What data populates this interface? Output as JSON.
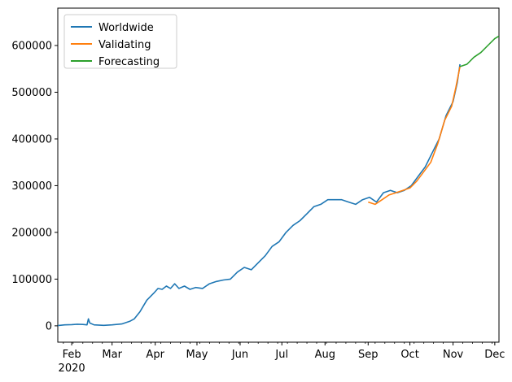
{
  "chart_data": {
    "type": "line",
    "title": "",
    "xlabel": "",
    "ylabel": "",
    "x_start": "2020-01-22",
    "x_end": "2020-12-04",
    "xlim": [
      "2020-01-22",
      "2020-12-04"
    ],
    "ylim": [
      -35000,
      680000
    ],
    "yticks": [
      0,
      100000,
      200000,
      300000,
      400000,
      500000,
      600000
    ],
    "ytick_labels": [
      "0",
      "100000",
      "200000",
      "300000",
      "400000",
      "500000",
      "600000"
    ],
    "xticks": [
      {
        "date": "2020-02-01",
        "label": "Feb"
      },
      {
        "date": "2020-03-01",
        "label": "Mar"
      },
      {
        "date": "2020-04-01",
        "label": "Apr"
      },
      {
        "date": "2020-05-01",
        "label": "May"
      },
      {
        "date": "2020-06-01",
        "label": "Jun"
      },
      {
        "date": "2020-07-01",
        "label": "Jul"
      },
      {
        "date": "2020-08-01",
        "label": "Aug"
      },
      {
        "date": "2020-09-01",
        "label": "Sep"
      },
      {
        "date": "2020-10-01",
        "label": "Oct"
      },
      {
        "date": "2020-11-01",
        "label": "Nov"
      },
      {
        "date": "2020-12-01",
        "label": "Dec"
      }
    ],
    "year_label": "2020",
    "grid": false,
    "legend_position": "top-left",
    "series": [
      {
        "name": "Worldwide",
        "color": "#1f77b4",
        "points": [
          [
            "2020-01-22",
            500
          ],
          [
            "2020-01-27",
            2000
          ],
          [
            "2020-02-01",
            2500
          ],
          [
            "2020-02-05",
            3500
          ],
          [
            "2020-02-09",
            3000
          ],
          [
            "2020-02-12",
            2000
          ],
          [
            "2020-02-13",
            15000
          ],
          [
            "2020-02-14",
            6000
          ],
          [
            "2020-02-17",
            2000
          ],
          [
            "2020-02-24",
            1000
          ],
          [
            "2020-03-01",
            2000
          ],
          [
            "2020-03-08",
            4000
          ],
          [
            "2020-03-14",
            10000
          ],
          [
            "2020-03-17",
            15000
          ],
          [
            "2020-03-21",
            30000
          ],
          [
            "2020-03-26",
            55000
          ],
          [
            "2020-03-31",
            70000
          ],
          [
            "2020-04-03",
            80000
          ],
          [
            "2020-04-06",
            78000
          ],
          [
            "2020-04-09",
            85000
          ],
          [
            "2020-04-12",
            80000
          ],
          [
            "2020-04-15",
            90000
          ],
          [
            "2020-04-18",
            80000
          ],
          [
            "2020-04-22",
            85000
          ],
          [
            "2020-04-26",
            78000
          ],
          [
            "2020-04-30",
            82000
          ],
          [
            "2020-05-05",
            80000
          ],
          [
            "2020-05-10",
            90000
          ],
          [
            "2020-05-15",
            95000
          ],
          [
            "2020-05-20",
            98000
          ],
          [
            "2020-05-25",
            100000
          ],
          [
            "2020-05-30",
            115000
          ],
          [
            "2020-06-04",
            125000
          ],
          [
            "2020-06-09",
            120000
          ],
          [
            "2020-06-14",
            135000
          ],
          [
            "2020-06-19",
            150000
          ],
          [
            "2020-06-24",
            170000
          ],
          [
            "2020-06-29",
            180000
          ],
          [
            "2020-07-04",
            200000
          ],
          [
            "2020-07-09",
            215000
          ],
          [
            "2020-07-14",
            225000
          ],
          [
            "2020-07-19",
            240000
          ],
          [
            "2020-07-24",
            255000
          ],
          [
            "2020-07-29",
            260000
          ],
          [
            "2020-08-03",
            270000
          ],
          [
            "2020-08-08",
            270000
          ],
          [
            "2020-08-13",
            270000
          ],
          [
            "2020-08-18",
            265000
          ],
          [
            "2020-08-23",
            260000
          ],
          [
            "2020-08-28",
            270000
          ],
          [
            "2020-09-02",
            275000
          ],
          [
            "2020-09-07",
            265000
          ],
          [
            "2020-09-12",
            285000
          ],
          [
            "2020-09-17",
            290000
          ],
          [
            "2020-09-22",
            285000
          ],
          [
            "2020-09-27",
            290000
          ],
          [
            "2020-10-02",
            300000
          ],
          [
            "2020-10-07",
            320000
          ],
          [
            "2020-10-12",
            340000
          ],
          [
            "2020-10-17",
            370000
          ],
          [
            "2020-10-22",
            400000
          ],
          [
            "2020-10-27",
            450000
          ],
          [
            "2020-11-01",
            480000
          ],
          [
            "2020-11-04",
            520000
          ],
          [
            "2020-11-06",
            560000
          ]
        ]
      },
      {
        "name": "Validating",
        "color": "#ff7f0e",
        "points": [
          [
            "2020-09-01",
            265000
          ],
          [
            "2020-09-06",
            260000
          ],
          [
            "2020-09-11",
            270000
          ],
          [
            "2020-09-16",
            280000
          ],
          [
            "2020-09-21",
            285000
          ],
          [
            "2020-09-26",
            290000
          ],
          [
            "2020-10-01",
            295000
          ],
          [
            "2020-10-06",
            310000
          ],
          [
            "2020-10-11",
            330000
          ],
          [
            "2020-10-16",
            350000
          ],
          [
            "2020-10-21",
            390000
          ],
          [
            "2020-10-26",
            440000
          ],
          [
            "2020-10-31",
            470000
          ],
          [
            "2020-11-03",
            510000
          ],
          [
            "2020-11-06",
            555000
          ]
        ]
      },
      {
        "name": "Forecasting",
        "color": "#2ca02c",
        "points": [
          [
            "2020-11-06",
            555000
          ],
          [
            "2020-11-11",
            560000
          ],
          [
            "2020-11-16",
            575000
          ],
          [
            "2020-11-21",
            585000
          ],
          [
            "2020-11-26",
            600000
          ],
          [
            "2020-12-01",
            615000
          ],
          [
            "2020-12-04",
            620000
          ]
        ]
      }
    ]
  }
}
